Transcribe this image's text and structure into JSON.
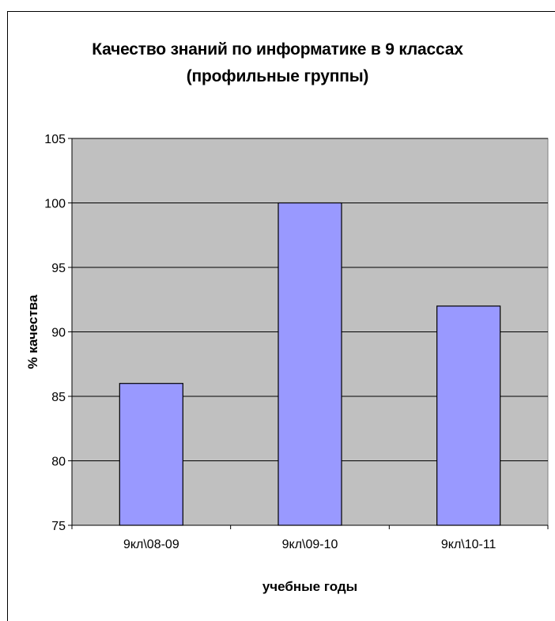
{
  "chart_data": {
    "type": "bar",
    "title_line1": "Качество знаний по информатике в 9 классах",
    "title_line2": "(профильные группы)",
    "xlabel": "учебные годы",
    "ylabel": "% качества",
    "categories": [
      "9кл\\08-09",
      "9кл\\09-10",
      "9кл\\10-11"
    ],
    "values": [
      86,
      100,
      92
    ],
    "ylim": [
      75,
      105
    ],
    "yticks": [
      75,
      80,
      85,
      90,
      95,
      100,
      105
    ],
    "grid": true,
    "legend": "none",
    "colors": {
      "bar_fill": "#9999ff",
      "plot_background": "#c0c0c0",
      "gridline": "#000000"
    }
  }
}
